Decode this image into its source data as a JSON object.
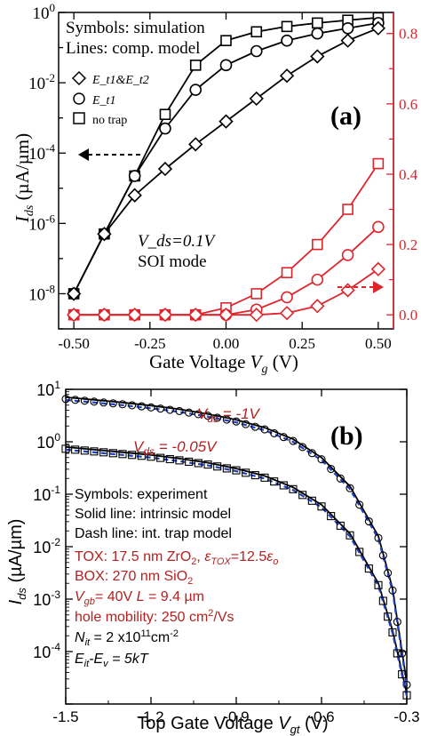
{
  "chart_data": [
    {
      "panel_label": "(a)",
      "type": "line",
      "xlabel": "Gate Voltage V_g (V)",
      "ylabel_left": "I_ds (µA/µm)",
      "xlim": [
        -0.55,
        0.55
      ],
      "x_ticks": [
        "-0.50",
        "-0.25",
        "0.00",
        "0.25",
        "0.50"
      ],
      "x_tick_values": [
        -0.5,
        -0.25,
        0.0,
        0.25,
        0.5
      ],
      "y_left_log": true,
      "y_left_range_log10": [
        -9,
        0
      ],
      "y_left_ticks": [
        "10^-8",
        "10^-6",
        "10^-4",
        "10^-2",
        "10^0"
      ],
      "y_left_tick_exp": [
        -8,
        -6,
        -4,
        -2,
        0
      ],
      "y_right_ylim": [
        -0.04,
        0.86
      ],
      "y_right_ticks": [
        "0.0",
        "0.2",
        "0.4",
        "0.6",
        "0.8"
      ],
      "y_right_tick_values": [
        0.0,
        0.2,
        0.4,
        0.6,
        0.8
      ],
      "right_axis_color": "#e0242c",
      "annotations": [
        "Symbols: simulation",
        "Lines: comp. model",
        "V_ds=0.1V",
        "SOI mode"
      ],
      "legend": [
        "E_t1&E_t2",
        "E_t1",
        "no trap"
      ],
      "series": [
        {
          "name": "no trap",
          "marker": "square",
          "axis": "left-log",
          "x": [
            -0.5,
            -0.4,
            -0.3,
            -0.2,
            -0.1,
            0.0,
            0.1,
            0.2,
            0.3,
            0.4,
            0.5
          ],
          "log10_y": [
            -8.0,
            -6.3,
            -4.65,
            -2.9,
            -1.5,
            -0.8,
            -0.55,
            -0.4,
            -0.3,
            -0.22,
            -0.15
          ]
        },
        {
          "name": "E_t1",
          "marker": "circle",
          "axis": "left-log",
          "x": [
            -0.5,
            -0.4,
            -0.3,
            -0.2,
            -0.1,
            0.0,
            0.1,
            0.2,
            0.3,
            0.4,
            0.5
          ],
          "log10_y": [
            -8.0,
            -6.3,
            -4.65,
            -3.3,
            -2.2,
            -1.5,
            -1.1,
            -0.8,
            -0.6,
            -0.45,
            -0.3
          ]
        },
        {
          "name": "E_t1&E_t2",
          "marker": "diamond",
          "axis": "left-log",
          "x": [
            -0.5,
            -0.4,
            -0.3,
            -0.2,
            -0.1,
            0.0,
            0.1,
            0.2,
            0.3,
            0.4,
            0.5
          ],
          "log10_y": [
            -8.0,
            -6.3,
            -5.2,
            -4.45,
            -3.75,
            -3.1,
            -2.45,
            -1.8,
            -1.25,
            -0.8,
            -0.45
          ]
        },
        {
          "name": "no trap (linear)",
          "marker": "square",
          "axis": "right-linear",
          "x": [
            -0.5,
            -0.4,
            -0.3,
            -0.2,
            -0.1,
            0.0,
            0.1,
            0.2,
            0.3,
            0.4,
            0.5
          ],
          "y": [
            0.0,
            0.0,
            0.0,
            0.0,
            0.0,
            0.02,
            0.06,
            0.12,
            0.2,
            0.3,
            0.43
          ]
        },
        {
          "name": "E_t1 (linear)",
          "marker": "circle",
          "axis": "right-linear",
          "x": [
            -0.5,
            -0.4,
            -0.3,
            -0.2,
            -0.1,
            0.0,
            0.1,
            0.2,
            0.3,
            0.4,
            0.5
          ],
          "y": [
            0.0,
            0.0,
            0.0,
            0.0,
            0.0,
            0.0,
            0.015,
            0.05,
            0.1,
            0.17,
            0.25
          ]
        },
        {
          "name": "E_t1&E_t2 (linear)",
          "marker": "diamond",
          "axis": "right-linear",
          "x": [
            -0.5,
            -0.4,
            -0.3,
            -0.2,
            -0.1,
            0.0,
            0.1,
            0.2,
            0.3,
            0.4,
            0.5
          ],
          "y": [
            0.0,
            0.0,
            0.0,
            0.0,
            0.0,
            0.0,
            0.0,
            0.005,
            0.025,
            0.07,
            0.13
          ]
        }
      ]
    },
    {
      "panel_label": "(b)",
      "type": "line",
      "xlabel": "Top Gate Voltage V_gt (V)",
      "ylabel": "I_ds (µA/µm)",
      "xlim": [
        -1.5,
        -0.3
      ],
      "x_ticks": [
        "-1.5",
        "-1.2",
        "-0.9",
        "-0.6",
        "-0.3"
      ],
      "x_tick_values": [
        -1.5,
        -1.2,
        -0.9,
        -0.6,
        -0.3
      ],
      "y_log": true,
      "y_range_log10": [
        -5,
        1
      ],
      "y_ticks": [
        "10^-4",
        "10^-3",
        "10^-2",
        "10^-1",
        "10^0",
        "10^1"
      ],
      "y_tick_exp": [
        -4,
        -3,
        -2,
        -1,
        0,
        1
      ],
      "annotations": [
        "V_ds = -1V",
        "V_ds = -0.05V",
        "Symbols: experiment",
        "Solid line: intrinsic model",
        "Dash line: int. trap model",
        "TOX: 17.5 nm ZrO2, εTOX=12.5εo",
        "BOX: 270 nm SiO2",
        "V_gb = 40V  L = 9.4 µm",
        "hole mobility: 250 cm2/Vs",
        "N_it = 2 x10^11 cm^-2",
        "E_it - E_v = 5kT"
      ],
      "series": [
        {
          "name": "V_ds = -1V",
          "x": [
            -1.5,
            -1.4,
            -1.3,
            -1.2,
            -1.1,
            -1.0,
            -0.9,
            -0.8,
            -0.7,
            -0.6,
            -0.5,
            -0.4,
            -0.35,
            -0.3
          ],
          "log10_y": [
            0.85,
            0.8,
            0.75,
            0.69,
            0.62,
            0.53,
            0.42,
            0.27,
            0.05,
            -0.3,
            -0.85,
            -1.8,
            -2.8,
            -4.6
          ]
        },
        {
          "name": "V_ds = -0.05V",
          "x": [
            -1.5,
            -1.4,
            -1.3,
            -1.2,
            -1.1,
            -1.0,
            -0.9,
            -0.8,
            -0.7,
            -0.6,
            -0.5,
            -0.4,
            -0.35,
            -0.3
          ],
          "log10_y": [
            -0.1,
            -0.15,
            -0.2,
            -0.25,
            -0.32,
            -0.4,
            -0.51,
            -0.65,
            -0.87,
            -1.2,
            -1.75,
            -2.7,
            -3.6,
            -4.8
          ]
        }
      ]
    }
  ]
}
